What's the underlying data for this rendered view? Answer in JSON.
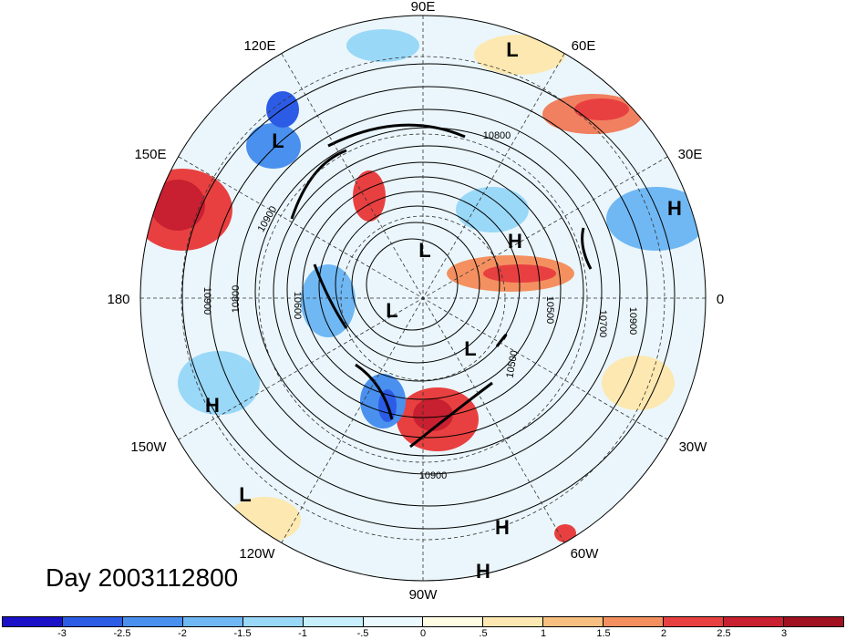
{
  "map": {
    "longitude_labels": [
      "90E",
      "60E",
      "30E",
      "0",
      "30W",
      "60W",
      "90W",
      "120W",
      "150W",
      "180",
      "150E",
      "120E"
    ],
    "contour_labels": [
      "10800",
      "10900",
      "10800",
      "10900",
      "10600",
      "10500",
      "10700",
      "10900",
      "10500",
      "10900"
    ],
    "pressure_centers": [
      "L",
      "L",
      "H",
      "H",
      "L",
      "L",
      "L",
      "H",
      "L",
      "H",
      "H"
    ]
  },
  "date_label": "Day 2003112800",
  "colorbar": {
    "labels": [
      "-3",
      "-2.5",
      "-2",
      "-1.5",
      "-1",
      "-.5",
      "0",
      ".5",
      "1",
      "1.5",
      "2",
      "2.5",
      "3"
    ],
    "colors": [
      "#1a10c8",
      "#2c5ce6",
      "#4a90ee",
      "#70b8f4",
      "#9ad8f8",
      "#c8f0fc",
      "#eafafe",
      "#fefce2",
      "#fce8b0",
      "#f8c080",
      "#f49060",
      "#e84040",
      "#c82030",
      "#a01020"
    ]
  }
}
